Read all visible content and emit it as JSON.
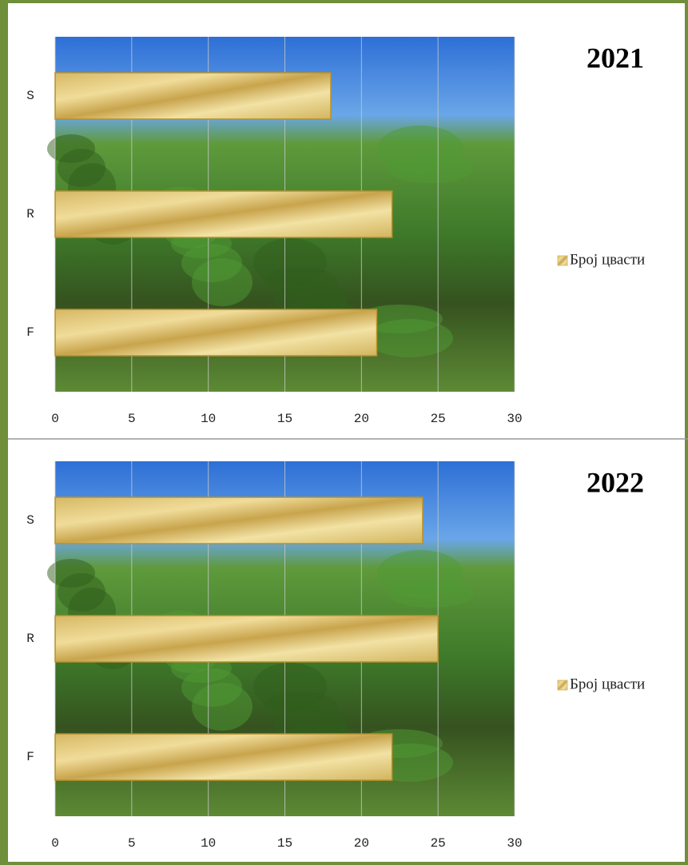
{
  "chart_data": [
    {
      "type": "bar",
      "orientation": "horizontal",
      "title": "2021",
      "categories": [
        "S",
        "R",
        "F"
      ],
      "series": [
        {
          "name": "Број цвасти",
          "color": "#d9bd6a",
          "values": [
            18,
            22,
            21
          ]
        }
      ],
      "xlim": [
        0,
        30
      ],
      "xticks": [
        0,
        5,
        10,
        15,
        20,
        25,
        30
      ],
      "grid": true,
      "legend": "right"
    },
    {
      "type": "bar",
      "orientation": "horizontal",
      "title": "2022",
      "categories": [
        "S",
        "R",
        "F"
      ],
      "series": [
        {
          "name": "Број цвасти",
          "color": "#d9bd6a",
          "values": [
            24,
            25,
            22
          ]
        }
      ],
      "xlim": [
        0,
        30
      ],
      "xticks": [
        0,
        5,
        10,
        15,
        20,
        25,
        30
      ],
      "grid": true,
      "legend": "right"
    }
  ]
}
